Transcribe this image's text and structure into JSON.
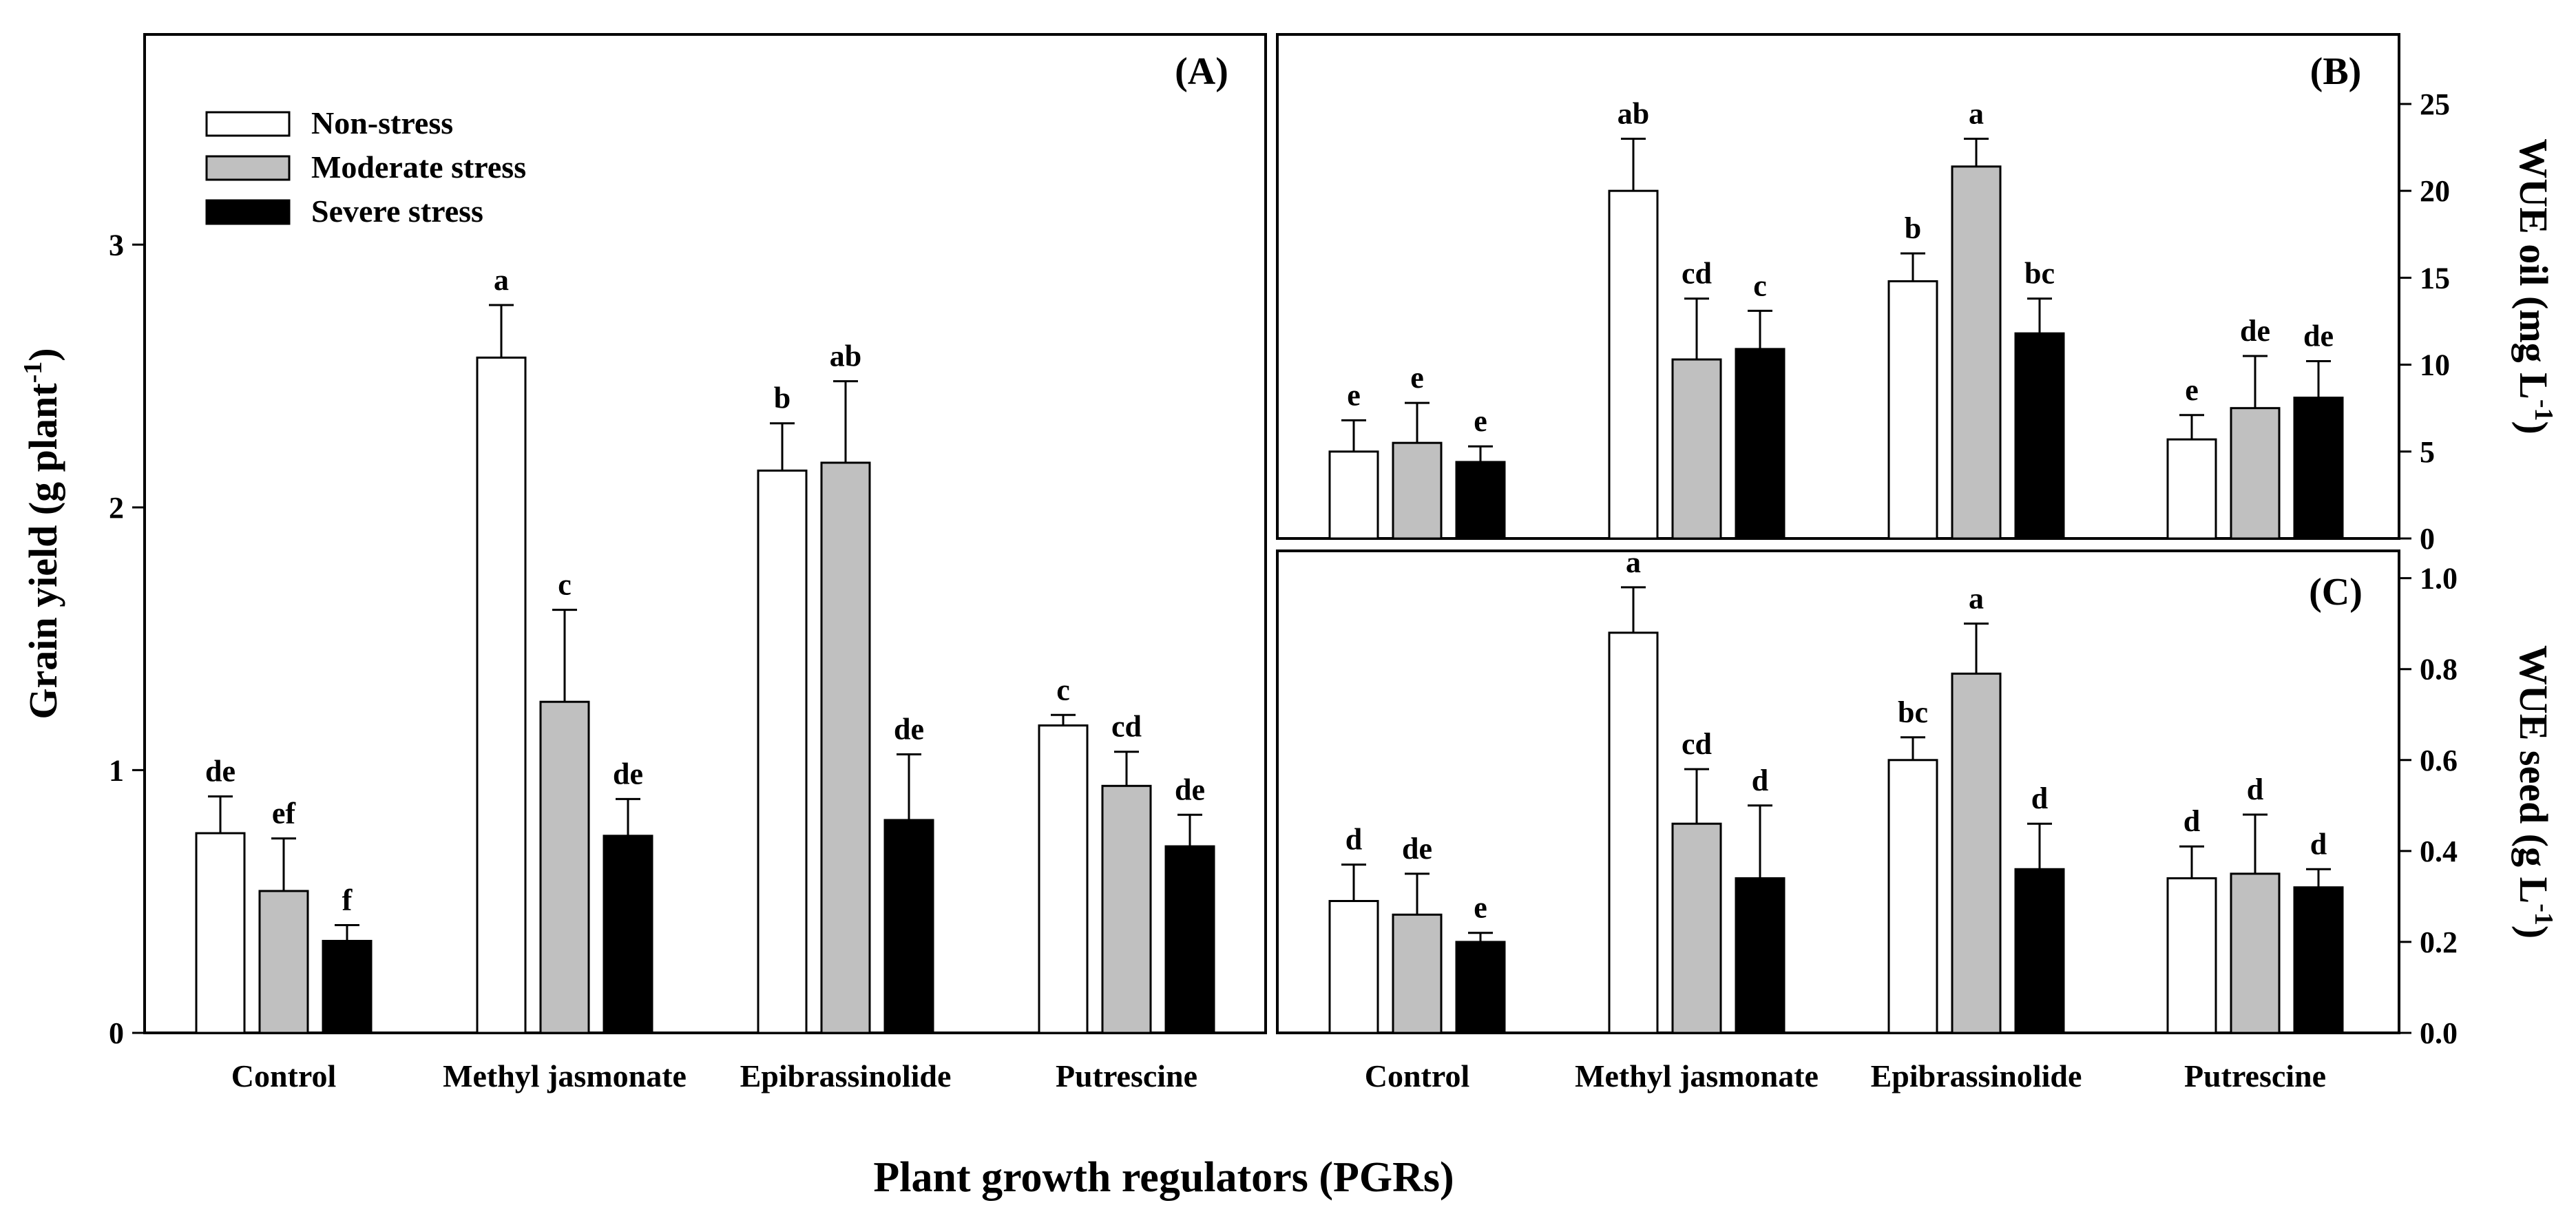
{
  "chart_data": {
    "type": "bar",
    "categories": [
      "Control",
      "Methyl jasmonate",
      "Epibrassinolide",
      "Putrescine"
    ],
    "shared_xlabel": "Plant growth regulators (PGRs)",
    "legend": {
      "placement": "top-left",
      "entries": [
        {
          "name": "Non-stress",
          "color": "#ffffff"
        },
        {
          "name": "Moderate stress",
          "color": "#c0c0c0"
        },
        {
          "name": "Severe stress",
          "color": "#000000"
        }
      ]
    },
    "panels": [
      {
        "id": "A",
        "panel_label": "(A)",
        "ylabel_main": "Grain yield (g plant",
        "ylabel_sup": "-1",
        "ylabel_close": ")",
        "ylim": [
          0,
          3.8
        ],
        "ticks": [
          0,
          1,
          2,
          3
        ],
        "tick_labels": [
          "0",
          "1",
          "2",
          "3"
        ],
        "axis_side": "left",
        "series": [
          {
            "name": "Non-stress",
            "values": [
              0.76,
              2.57,
              2.14,
              1.17
            ],
            "errors": [
              0.14,
              0.2,
              0.18,
              0.04
            ],
            "letters": [
              "de",
              "a",
              "b",
              "c"
            ]
          },
          {
            "name": "Moderate stress",
            "values": [
              0.54,
              1.26,
              2.17,
              0.94
            ],
            "errors": [
              0.2,
              0.35,
              0.31,
              0.13
            ],
            "letters": [
              "ef",
              "c",
              "ab",
              "cd"
            ]
          },
          {
            "name": "Severe stress",
            "values": [
              0.35,
              0.75,
              0.81,
              0.71
            ],
            "errors": [
              0.06,
              0.14,
              0.25,
              0.12
            ],
            "letters": [
              "f",
              "de",
              "de",
              "de"
            ]
          }
        ]
      },
      {
        "id": "B",
        "panel_label": "(B)",
        "ylabel_main": "WUE oil (mg L",
        "ylabel_sup": "-1",
        "ylabel_close": ")",
        "ylim": [
          0,
          29
        ],
        "ticks": [
          0,
          5,
          10,
          15,
          20,
          25
        ],
        "tick_labels": [
          "0",
          "5",
          "10",
          "15",
          "20",
          "25"
        ],
        "axis_side": "right",
        "series": [
          {
            "name": "Non-stress",
            "values": [
              5.0,
              20.0,
              14.8,
              5.7
            ],
            "errors": [
              1.8,
              3.0,
              1.6,
              1.4
            ],
            "letters": [
              "e",
              "ab",
              "b",
              "e"
            ]
          },
          {
            "name": "Moderate stress",
            "values": [
              5.5,
              10.3,
              21.4,
              7.5
            ],
            "errors": [
              2.3,
              3.5,
              1.6,
              3.0
            ],
            "letters": [
              "e",
              "cd",
              "a",
              "de"
            ]
          },
          {
            "name": "Severe stress",
            "values": [
              4.4,
              10.9,
              11.8,
              8.1
            ],
            "errors": [
              0.9,
              2.2,
              2.0,
              2.1
            ],
            "letters": [
              "e",
              "c",
              "bc",
              "de"
            ]
          }
        ]
      },
      {
        "id": "C",
        "panel_label": "(C)",
        "ylabel_main": "WUE seed (g  L",
        "ylabel_sup": "-1",
        "ylabel_close": ")",
        "ylim": [
          0,
          1.06
        ],
        "ticks": [
          0,
          0.2,
          0.4,
          0.6,
          0.8,
          1.0
        ],
        "tick_labels": [
          "0.0",
          "0.2",
          "0.4",
          "0.6",
          "0.8",
          "1.0"
        ],
        "axis_side": "right",
        "series": [
          {
            "name": "Non-stress",
            "values": [
              0.29,
              0.88,
              0.6,
              0.34
            ],
            "errors": [
              0.08,
              0.1,
              0.05,
              0.07
            ],
            "letters": [
              "d",
              "a",
              "bc",
              "d"
            ]
          },
          {
            "name": "Moderate stress",
            "values": [
              0.26,
              0.46,
              0.79,
              0.35
            ],
            "errors": [
              0.09,
              0.12,
              0.11,
              0.13
            ],
            "letters": [
              "de",
              "cd",
              "a",
              "d"
            ]
          },
          {
            "name": "Severe stress",
            "values": [
              0.2,
              0.34,
              0.36,
              0.32
            ],
            "errors": [
              0.02,
              0.16,
              0.1,
              0.04
            ],
            "letters": [
              "e",
              "d",
              "d",
              "d"
            ]
          }
        ]
      }
    ]
  }
}
